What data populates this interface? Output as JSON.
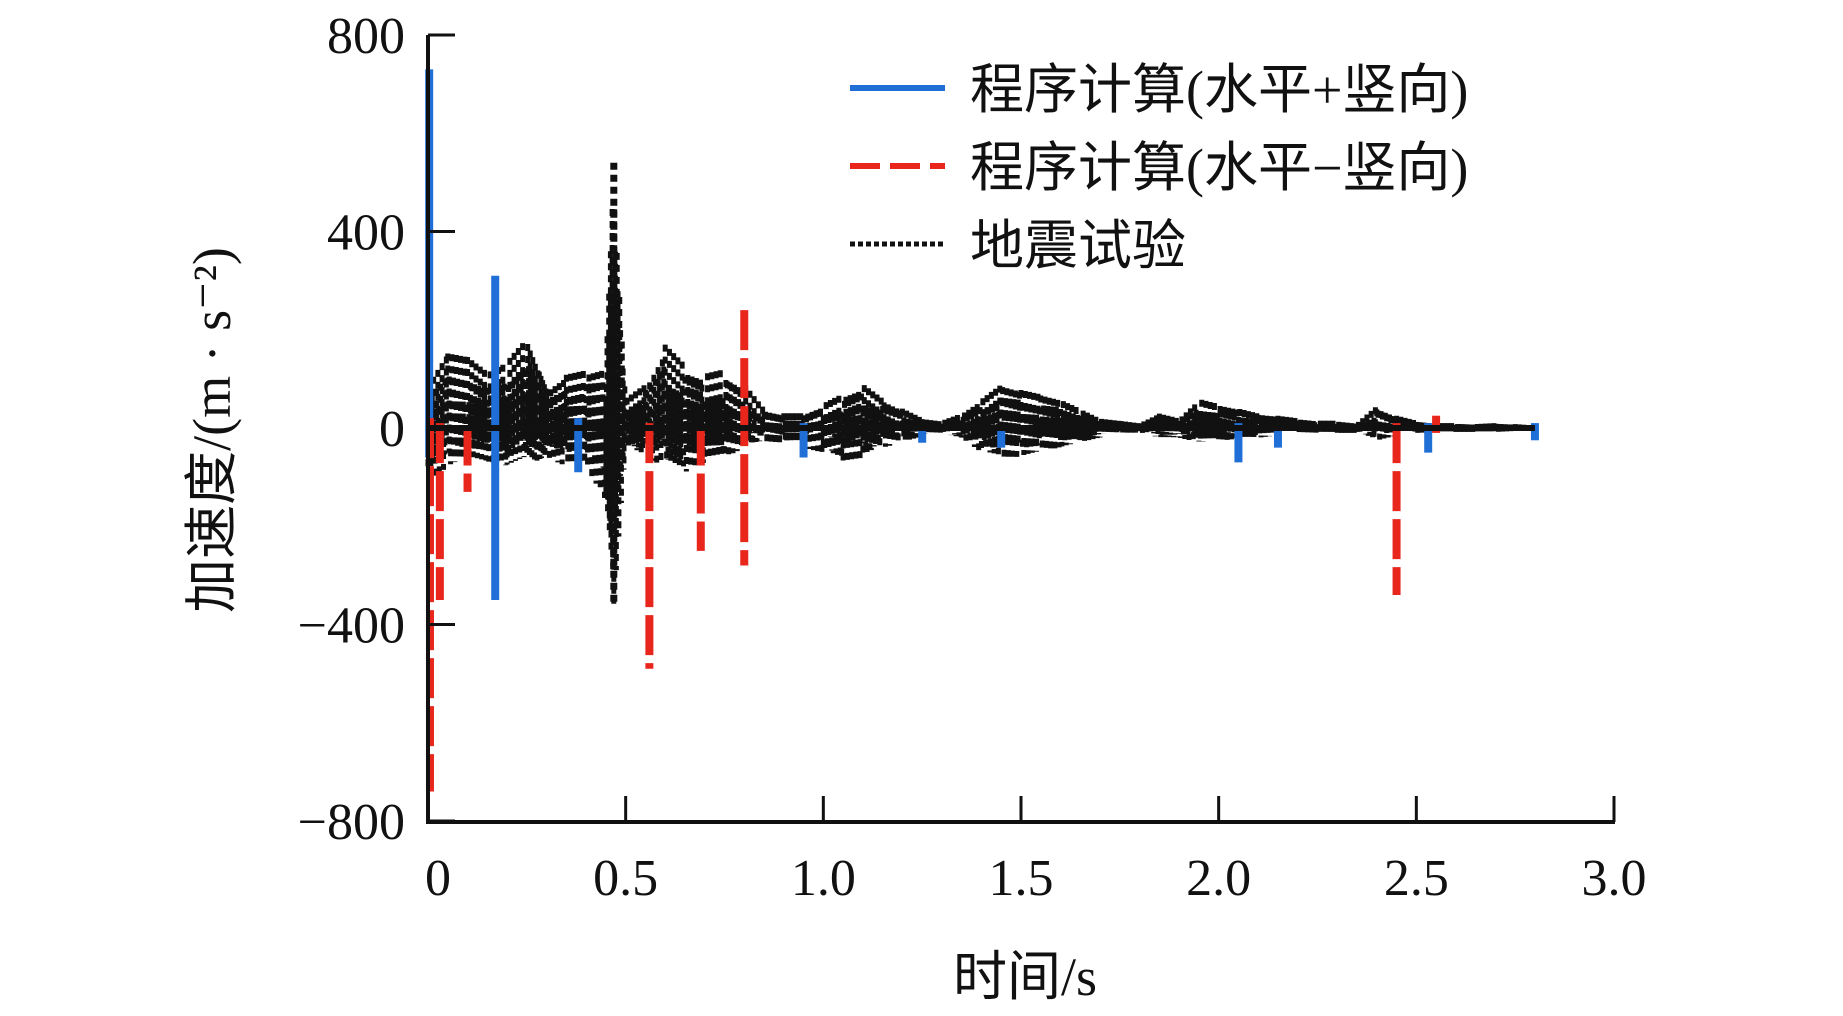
{
  "chart_data": {
    "type": "line",
    "title": "",
    "xlabel": "时间/s",
    "ylabel": "加速度/(m · s⁻²)",
    "xlim": [
      0,
      3.0
    ],
    "ylim": [
      -800,
      800
    ],
    "xticks": [
      0,
      0.5,
      1.0,
      1.5,
      2.0,
      2.5,
      3.0
    ],
    "xtick_labels": [
      "0",
      "0.5",
      "1.0",
      "1.5",
      "2.0",
      "2.5",
      "3.0"
    ],
    "yticks": [
      800,
      400,
      0,
      -400,
      -800
    ],
    "ytick_labels": [
      "800",
      "400",
      "0",
      "−400",
      "−800"
    ],
    "grid": false,
    "legend_position": "top-right",
    "series": [
      {
        "name": "程序计算(水平+竖向)",
        "color": "#1f6fd6",
        "style": "solid",
        "spikes": [
          {
            "t": 0.003,
            "max": 730,
            "min": -60
          },
          {
            "t": 0.17,
            "max": 310,
            "min": -350
          },
          {
            "t": 0.38,
            "max": 20,
            "min": -90
          },
          {
            "t": 0.95,
            "max": 10,
            "min": -60
          },
          {
            "t": 1.25,
            "max": 5,
            "min": -30
          },
          {
            "t": 1.45,
            "max": 5,
            "min": -40
          },
          {
            "t": 2.05,
            "max": 10,
            "min": -70
          },
          {
            "t": 2.15,
            "max": 5,
            "min": -40
          },
          {
            "t": 2.53,
            "max": 10,
            "min": -50
          },
          {
            "t": 2.8,
            "max": 10,
            "min": -25
          }
        ]
      },
      {
        "name": "程序计算(水平−竖向)",
        "color": "#e8261c",
        "style": "dashed",
        "spikes": [
          {
            "t": 0.005,
            "max": 20,
            "min": -740
          },
          {
            "t": 0.03,
            "max": 10,
            "min": -350
          },
          {
            "t": 0.1,
            "max": 5,
            "min": -130
          },
          {
            "t": 0.56,
            "max": 10,
            "min": -490
          },
          {
            "t": 0.69,
            "max": 5,
            "min": -250
          },
          {
            "t": 0.8,
            "max": 240,
            "min": -280
          },
          {
            "t": 2.45,
            "max": 10,
            "min": -340
          },
          {
            "t": 2.55,
            "max": 25,
            "min": -10
          }
        ]
      },
      {
        "name": "地震试验",
        "color": "#111111",
        "style": "dotted",
        "envelope": {
          "t": [
            0.0,
            0.05,
            0.1,
            0.15,
            0.2,
            0.25,
            0.28,
            0.3,
            0.35,
            0.4,
            0.45,
            0.47,
            0.5,
            0.55,
            0.6,
            0.65,
            0.7,
            0.75,
            0.8,
            0.85,
            0.9,
            0.95,
            1.0,
            1.05,
            1.1,
            1.15,
            1.2,
            1.25,
            1.3,
            1.35,
            1.4,
            1.45,
            1.5,
            1.55,
            1.6,
            1.65,
            1.7,
            1.75,
            1.8,
            1.85,
            1.9,
            1.95,
            2.0,
            2.05,
            2.1,
            2.15,
            2.2,
            2.25,
            2.3,
            2.35,
            2.4,
            2.45,
            2.5,
            2.55,
            2.6,
            2.65,
            2.7,
            2.75,
            2.8
          ],
          "max": [
            90,
            160,
            150,
            120,
            140,
            190,
            120,
            80,
            110,
            120,
            130,
            540,
            60,
            90,
            170,
            130,
            110,
            120,
            90,
            40,
            30,
            30,
            50,
            70,
            90,
            60,
            40,
            20,
            15,
            30,
            60,
            90,
            80,
            70,
            60,
            40,
            20,
            15,
            10,
            30,
            20,
            60,
            50,
            40,
            30,
            25,
            20,
            15,
            15,
            10,
            45,
            25,
            15,
            10,
            10,
            8,
            10,
            8,
            5
          ],
          "min": [
            -120,
            -80,
            -60,
            -70,
            -80,
            -60,
            -70,
            -60,
            -80,
            -80,
            -150,
            -360,
            -40,
            -60,
            -80,
            -90,
            -70,
            -60,
            -40,
            -30,
            -30,
            -40,
            -50,
            -70,
            -60,
            -40,
            -30,
            -20,
            -15,
            -20,
            -50,
            -60,
            -60,
            -50,
            -40,
            -30,
            -20,
            -10,
            -10,
            -20,
            -20,
            -30,
            -30,
            -20,
            -20,
            -15,
            -10,
            -10,
            -10,
            -10,
            -25,
            -15,
            -10,
            -8,
            -8,
            -8,
            -8,
            -6,
            -5
          ]
        }
      }
    ]
  }
}
